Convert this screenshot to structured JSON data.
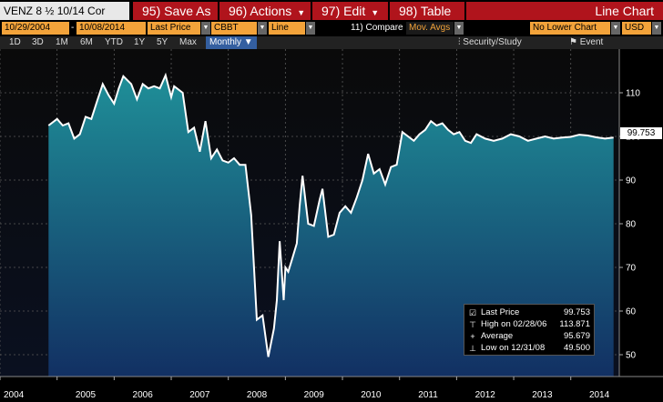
{
  "toolbar": {
    "security": "VENZ 8 ½ 10/14 Cor",
    "save": "95) Save As",
    "actions": "96) Actions",
    "edit": "97) Edit",
    "table": "98) Table",
    "chart_type_name": "Line Chart"
  },
  "fields": {
    "start_date": "10/29/2004",
    "end_date": "10/08/2014",
    "field": "Last Price",
    "source": "CBBT",
    "style": "Line",
    "compare": "11) Compare",
    "mov_avgs": "Mov. Avgs",
    "no_lower_chart": "No Lower Chart",
    "currency": "USD"
  },
  "periods": {
    "items": [
      "1D",
      "3D",
      "1M",
      "6M",
      "YTD",
      "1Y",
      "5Y",
      "Max"
    ],
    "selected": "Monthly",
    "security_study": "Security/Study",
    "event": "Event"
  },
  "legend": {
    "last_price_label": "Last Price",
    "last_price_value": "99.753",
    "high_label": "High on 02/28/06",
    "high_value": "113.871",
    "average_label": "Average",
    "average_value": "95.679",
    "low_label": "Low on 12/31/08",
    "low_value": "49.500"
  },
  "price_tag": "99.753",
  "colors": {
    "menu_red": "#b0141c",
    "field_orange": "#f3a33a",
    "line": "#ffffff",
    "fill_top": "#1f8f98",
    "fill_bottom": "#123063"
  },
  "chart_data": {
    "type": "area",
    "ylim": [
      45,
      120
    ],
    "yticks": [
      50,
      60,
      70,
      80,
      90,
      100,
      110
    ],
    "xlim": [
      2004.0,
      2014.85
    ],
    "xticks": [
      2004,
      2005,
      2006,
      2007,
      2008,
      2009,
      2010,
      2011,
      2012,
      2013,
      2014
    ],
    "x": [
      2004.85,
      2005.0,
      2005.1,
      2005.2,
      2005.3,
      2005.4,
      2005.5,
      2005.6,
      2005.7,
      2005.8,
      2005.9,
      2006.0,
      2006.08,
      2006.16,
      2006.3,
      2006.4,
      2006.5,
      2006.6,
      2006.7,
      2006.8,
      2006.9,
      2007.0,
      2007.05,
      2007.1,
      2007.2,
      2007.3,
      2007.4,
      2007.5,
      2007.6,
      2007.7,
      2007.8,
      2007.9,
      2008.0,
      2008.1,
      2008.2,
      2008.3,
      2008.4,
      2008.5,
      2008.6,
      2008.7,
      2008.8,
      2008.85,
      2008.9,
      2008.97,
      2009.0,
      2009.05,
      2009.12,
      2009.2,
      2009.25,
      2009.3,
      2009.4,
      2009.5,
      2009.6,
      2009.65,
      2009.75,
      2009.85,
      2009.95,
      2010.05,
      2010.15,
      2010.25,
      2010.35,
      2010.45,
      2010.55,
      2010.65,
      2010.75,
      2010.85,
      2010.95,
      2011.05,
      2011.15,
      2011.25,
      2011.35,
      2011.45,
      2011.55,
      2011.65,
      2011.75,
      2011.85,
      2011.95,
      2012.05,
      2012.15,
      2012.25,
      2012.35,
      2012.5,
      2012.65,
      2012.8,
      2012.95,
      2013.1,
      2013.25,
      2013.4,
      2013.55,
      2013.7,
      2013.85,
      2014.0,
      2014.15,
      2014.3,
      2014.45,
      2014.6,
      2014.75
    ],
    "values": [
      102.5,
      104.0,
      102.5,
      103.0,
      99.5,
      100.5,
      104.5,
      104.0,
      108.0,
      112.0,
      109.5,
      107.5,
      111.0,
      113.8,
      112.0,
      108.5,
      112.0,
      111.0,
      111.5,
      111.0,
      114.0,
      109.0,
      111.5,
      111.0,
      110.0,
      101.0,
      102.0,
      96.5,
      103.5,
      95.0,
      97.0,
      94.5,
      94.0,
      95.0,
      93.5,
      93.5,
      82.0,
      58.0,
      59.0,
      49.5,
      56.0,
      62.5,
      76.0,
      62.5,
      70.0,
      69.0,
      72.0,
      75.5,
      84.0,
      91.0,
      80.0,
      79.5,
      85.5,
      88.0,
      77.0,
      77.5,
      82.5,
      84.0,
      82.5,
      86.0,
      90.0,
      96.0,
      91.5,
      92.5,
      89.0,
      93.0,
      93.5,
      101.0,
      100.0,
      99.0,
      100.5,
      101.5,
      103.5,
      102.5,
      103.0,
      101.5,
      100.5,
      101.0,
      99.0,
      98.5,
      100.5,
      99.5,
      99.0,
      99.5,
      100.5,
      100.0,
      99.0,
      99.5,
      100.0,
      99.5,
      99.75,
      99.9,
      100.4,
      100.2,
      99.8,
      99.5,
      99.753
    ]
  }
}
